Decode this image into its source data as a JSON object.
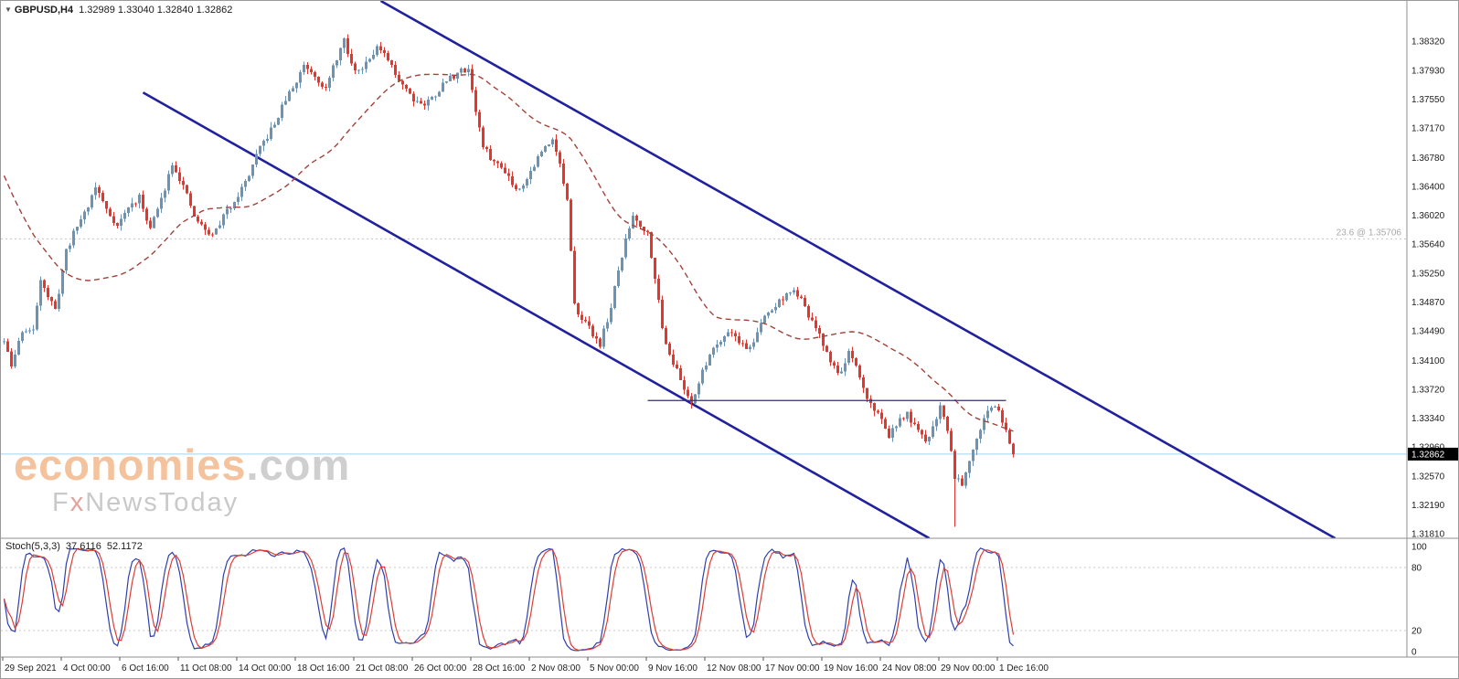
{
  "header": {
    "symbol": "GBPUSD,H4",
    "ohlc": "1.32989 1.33040 1.32840 1.32862",
    "dropdown_icon": "▼"
  },
  "watermark": {
    "brand_main": "economies",
    "brand_suffix": ".com",
    "brand_sub_f": "F",
    "brand_sub_x": "x",
    "brand_sub_rest": "NewsToday"
  },
  "stoch_panel": {
    "label": "Stoch(5,3,3)",
    "value_main": "37.6116",
    "value_signal": "52.1172",
    "axis_labels": [
      "100",
      "80",
      "20",
      "0"
    ],
    "grid_levels": [
      80,
      20
    ]
  },
  "colors": {
    "bull": "#6b93b5",
    "bear": "#e5352c",
    "ma": "#a2423a",
    "channel": "#21219e",
    "support": "#30306e",
    "bid_line": "#9ed4ef",
    "tag_bg": "#000000",
    "tag_text": "#ffffff",
    "fib_line": "#c4c4c4",
    "fib_text": "#a9a9a9",
    "axis_text": "#1c1c1c",
    "separator": "#8f8f8f",
    "grid_dotted": "#c8c8c8",
    "stoch_main": "#2e3fae",
    "stoch_signal": "#dd3d35"
  },
  "chart_data": {
    "type": "candlestick",
    "symbol": "GBPUSD",
    "timeframe": "H4",
    "price_range": [
      1.3175,
      1.3885
    ],
    "bars": 277,
    "seed": 11,
    "noise": 0.0009,
    "wick": 0.0007,
    "anchors": [
      [
        0,
        1.3435
      ],
      [
        2,
        1.3402
      ],
      [
        5,
        1.345
      ],
      [
        8,
        1.3448
      ],
      [
        10,
        1.352
      ],
      [
        12,
        1.3495
      ],
      [
        14,
        1.3475
      ],
      [
        17,
        1.3555
      ],
      [
        20,
        1.3588
      ],
      [
        23,
        1.3615
      ],
      [
        25,
        1.364
      ],
      [
        28,
        1.361
      ],
      [
        31,
        1.3588
      ],
      [
        34,
        1.3612
      ],
      [
        37,
        1.3625
      ],
      [
        40,
        1.3585
      ],
      [
        43,
        1.3622
      ],
      [
        46,
        1.3672
      ],
      [
        49,
        1.364
      ],
      [
        52,
        1.36
      ],
      [
        55,
        1.3582
      ],
      [
        57,
        1.3575
      ],
      [
        60,
        1.36
      ],
      [
        63,
        1.3622
      ],
      [
        66,
        1.3645
      ],
      [
        70,
        1.369
      ],
      [
        74,
        1.3722
      ],
      [
        77,
        1.3755
      ],
      [
        80,
        1.3778
      ],
      [
        82,
        1.3802
      ],
      [
        85,
        1.3788
      ],
      [
        88,
        1.3768
      ],
      [
        91,
        1.381
      ],
      [
        93,
        1.3832
      ],
      [
        95,
        1.38
      ],
      [
        97,
        1.3792
      ],
      [
        100,
        1.3812
      ],
      [
        102,
        1.3824
      ],
      [
        105,
        1.3806
      ],
      [
        107,
        1.3788
      ],
      [
        110,
        1.377
      ],
      [
        112,
        1.3756
      ],
      [
        115,
        1.3748
      ],
      [
        118,
        1.3762
      ],
      [
        121,
        1.378
      ],
      [
        124,
        1.379
      ],
      [
        127,
        1.3796
      ],
      [
        129,
        1.374
      ],
      [
        131,
        1.3692
      ],
      [
        134,
        1.3672
      ],
      [
        137,
        1.3662
      ],
      [
        140,
        1.3636
      ],
      [
        143,
        1.365
      ],
      [
        146,
        1.3678
      ],
      [
        149,
        1.3698
      ],
      [
        150,
        1.3706
      ],
      [
        152,
        1.3668
      ],
      [
        154,
        1.362
      ],
      [
        156,
        1.3482
      ],
      [
        158,
        1.3468
      ],
      [
        160,
        1.3452
      ],
      [
        163,
        1.3432
      ],
      [
        166,
        1.348
      ],
      [
        168,
        1.3528
      ],
      [
        170,
        1.3568
      ],
      [
        172,
        1.3602
      ],
      [
        174,
        1.359
      ],
      [
        176,
        1.3578
      ],
      [
        178,
        1.3522
      ],
      [
        180,
        1.3452
      ],
      [
        182,
        1.342
      ],
      [
        184,
        1.3396
      ],
      [
        186,
        1.3372
      ],
      [
        188,
        1.3356
      ],
      [
        190,
        1.338
      ],
      [
        193,
        1.342
      ],
      [
        196,
        1.3438
      ],
      [
        198,
        1.345
      ],
      [
        200,
        1.3442
      ],
      [
        203,
        1.3425
      ],
      [
        205,
        1.3435
      ],
      [
        208,
        1.3468
      ],
      [
        211,
        1.3482
      ],
      [
        213,
        1.3494
      ],
      [
        215,
        1.35
      ],
      [
        217,
        1.3498
      ],
      [
        219,
        1.3478
      ],
      [
        222,
        1.3452
      ],
      [
        225,
        1.342
      ],
      [
        228,
        1.3392
      ],
      [
        230,
        1.3406
      ],
      [
        231,
        1.3418
      ],
      [
        233,
        1.34
      ],
      [
        235,
        1.3372
      ],
      [
        237,
        1.3352
      ],
      [
        239,
        1.334
      ],
      [
        242,
        1.3312
      ],
      [
        244,
        1.3324
      ],
      [
        247,
        1.334
      ],
      [
        249,
        1.3322
      ],
      [
        252,
        1.3302
      ],
      [
        254,
        1.3322
      ],
      [
        256,
        1.335
      ],
      [
        258,
        1.332
      ],
      [
        260,
        1.3258
      ],
      [
        262,
        1.3248
      ],
      [
        264,
        1.328
      ],
      [
        266,
        1.331
      ],
      [
        268,
        1.3332
      ],
      [
        270,
        1.335
      ],
      [
        272,
        1.3342
      ],
      [
        274,
        1.3322
      ],
      [
        276,
        1.32862
      ]
    ],
    "spike": {
      "bar": 260,
      "low": 1.319
    },
    "ma": {
      "type": "sma",
      "period": 40,
      "prehistory": [
        1.387,
        1.346
      ]
    },
    "stochastic": {
      "k": 5,
      "slowing": 3,
      "d": 3
    },
    "price_axis_labels": [
      "1.38320",
      "1.37930",
      "1.37550",
      "1.37170",
      "1.36780",
      "1.36400",
      "1.36020",
      "1.35640",
      "1.35250",
      "1.34870",
      "1.34490",
      "1.34100",
      "1.33720",
      "1.33340",
      "1.32960",
      "1.32570",
      "1.32190",
      "1.31810"
    ],
    "time_axis_labels": [
      "29 Sep 2021",
      "4 Oct 00:00",
      "6 Oct 16:00",
      "11 Oct 08:00",
      "14 Oct 00:00",
      "18 Oct 16:00",
      "21 Oct 08:00",
      "26 Oct 00:00",
      "28 Oct 16:00",
      "2 Nov 08:00",
      "5 Nov 00:00",
      "9 Nov 16:00",
      "12 Nov 08:00",
      "17 Nov 00:00",
      "19 Nov 16:00",
      "24 Nov 08:00",
      "29 Nov 00:00",
      "1 Dec 16:00"
    ],
    "annotations": {
      "fib": {
        "label": "23.6 @ 1.35706",
        "price": 1.35706
      },
      "support": {
        "price": 1.3357,
        "bar_start": 176,
        "bar_end": 274
      },
      "channel": {
        "upper": [
          [
            103,
            1.3885
          ],
          [
            364,
            1.3175
          ]
        ],
        "lower": [
          [
            38,
            1.3764
          ],
          [
            253,
            1.3175
          ]
        ]
      },
      "current_price": 1.32862,
      "current_price_label": "1.32862"
    }
  }
}
